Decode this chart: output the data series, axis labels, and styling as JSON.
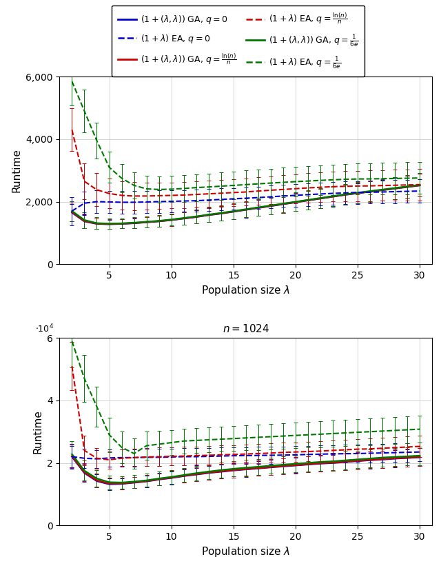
{
  "colors": {
    "blue": "#0000cc",
    "red": "#cc0000",
    "green": "#007700"
  },
  "n128": {
    "ylim": [
      0,
      6000
    ],
    "yticks": [
      0,
      2000,
      4000,
      6000
    ],
    "xlim": [
      1,
      31
    ],
    "xticks": [
      5,
      10,
      15,
      20,
      25,
      30
    ],
    "lambda_vals": [
      2,
      3,
      4,
      5,
      6,
      7,
      8,
      9,
      10,
      11,
      12,
      13,
      14,
      15,
      16,
      17,
      18,
      19,
      20,
      21,
      22,
      23,
      24,
      25,
      26,
      27,
      28,
      29,
      30
    ],
    "GA_q0_mean": [
      1650,
      1370,
      1290,
      1280,
      1290,
      1310,
      1340,
      1370,
      1410,
      1460,
      1510,
      1570,
      1620,
      1680,
      1740,
      1800,
      1860,
      1920,
      1980,
      2040,
      2100,
      2160,
      2220,
      2270,
      2320,
      2370,
      2420,
      2470,
      2520
    ],
    "GA_q0_err": [
      280,
      220,
      165,
      145,
      145,
      155,
      165,
      175,
      185,
      195,
      205,
      215,
      235,
      245,
      250,
      260,
      265,
      275,
      285,
      295,
      305,
      315,
      320,
      325,
      330,
      335,
      345,
      355,
      365
    ],
    "GA_qln_mean": [
      1670,
      1380,
      1295,
      1282,
      1295,
      1315,
      1345,
      1375,
      1415,
      1465,
      1515,
      1575,
      1625,
      1685,
      1745,
      1805,
      1865,
      1925,
      1985,
      2045,
      2105,
      2165,
      2225,
      2275,
      2325,
      2375,
      2425,
      2475,
      2525
    ],
    "GA_qln_err": [
      290,
      225,
      168,
      148,
      148,
      158,
      168,
      178,
      188,
      198,
      208,
      218,
      238,
      248,
      252,
      262,
      268,
      278,
      288,
      298,
      308,
      318,
      322,
      328,
      332,
      338,
      348,
      358,
      368
    ],
    "GA_q16e_mean": [
      1700,
      1410,
      1310,
      1295,
      1305,
      1325,
      1355,
      1385,
      1425,
      1475,
      1525,
      1585,
      1635,
      1695,
      1755,
      1815,
      1875,
      1935,
      1995,
      2055,
      2115,
      2175,
      2235,
      2285,
      2335,
      2385,
      2435,
      2485,
      2535
    ],
    "GA_q16e_err": [
      320,
      255,
      185,
      160,
      158,
      168,
      178,
      188,
      195,
      205,
      215,
      225,
      245,
      255,
      258,
      268,
      275,
      285,
      295,
      305,
      315,
      325,
      328,
      335,
      338,
      345,
      355,
      365,
      375
    ],
    "EA_q0_mean": [
      1700,
      1950,
      2000,
      1990,
      1980,
      1980,
      1990,
      2000,
      2010,
      2020,
      2030,
      2050,
      2070,
      2090,
      2110,
      2130,
      2155,
      2180,
      2200,
      2225,
      2245,
      2265,
      2280,
      2295,
      2300,
      2310,
      2320,
      2330,
      2340
    ],
    "EA_q0_err": [
      450,
      380,
      360,
      355,
      355,
      355,
      358,
      360,
      350,
      350,
      350,
      350,
      350,
      350,
      352,
      352,
      355,
      355,
      355,
      358,
      360,
      362,
      362,
      362,
      363,
      365,
      366,
      368,
      370
    ],
    "EA_qln_mean": [
      4300,
      2650,
      2380,
      2260,
      2200,
      2180,
      2180,
      2190,
      2200,
      2210,
      2230,
      2250,
      2270,
      2290,
      2310,
      2340,
      2365,
      2390,
      2415,
      2440,
      2460,
      2480,
      2490,
      2500,
      2505,
      2515,
      2525,
      2535,
      2545
    ],
    "EA_qln_err": [
      680,
      580,
      530,
      480,
      460,
      445,
      435,
      425,
      415,
      415,
      418,
      422,
      428,
      435,
      440,
      445,
      450,
      458,
      462,
      468,
      472,
      478,
      482,
      488,
      490,
      492,
      498,
      500,
      502
    ],
    "EA_q16e_mean": [
      5850,
      4900,
      3950,
      3100,
      2750,
      2520,
      2410,
      2390,
      2400,
      2420,
      2450,
      2470,
      2495,
      2520,
      2545,
      2570,
      2595,
      2618,
      2640,
      2660,
      2680,
      2700,
      2715,
      2725,
      2728,
      2735,
      2742,
      2750,
      2758
    ],
    "EA_q16e_err": [
      780,
      680,
      580,
      490,
      445,
      425,
      415,
      415,
      418,
      420,
      428,
      435,
      440,
      448,
      450,
      458,
      460,
      468,
      470,
      478,
      480,
      488,
      490,
      498,
      500,
      502,
      508,
      510,
      512
    ]
  },
  "n1024": {
    "ylim": [
      0,
      60000
    ],
    "yticks": [
      0,
      20000,
      40000,
      60000
    ],
    "ytick_labels": [
      "0",
      "2",
      "4",
      "6"
    ],
    "xlim": [
      1,
      31
    ],
    "xticks": [
      5,
      10,
      15,
      20,
      25,
      30
    ],
    "lambda_vals": [
      2,
      3,
      4,
      5,
      6,
      7,
      8,
      9,
      10,
      11,
      12,
      13,
      14,
      15,
      16,
      17,
      18,
      19,
      20,
      21,
      22,
      23,
      24,
      25,
      26,
      27,
      28,
      29,
      30
    ],
    "GA_q0_mean": [
      22000,
      16800,
      14200,
      13200,
      13300,
      13700,
      14100,
      14700,
      15200,
      15800,
      16300,
      16800,
      17200,
      17600,
      17950,
      18250,
      18600,
      18900,
      19200,
      19500,
      19800,
      20000,
      20300,
      20600,
      20900,
      21100,
      21400,
      21600,
      21800
    ],
    "GA_q0_err": [
      3800,
      2800,
      2100,
      1800,
      1750,
      1750,
      1850,
      1950,
      2050,
      2100,
      2150,
      2200,
      2250,
      2300,
      2350,
      2400,
      2450,
      2480,
      2520,
      2550,
      2580,
      2620,
      2650,
      2680,
      2720,
      2750,
      2780,
      2800,
      2850
    ],
    "GA_qln_mean": [
      22200,
      17000,
      14400,
      13400,
      13400,
      13800,
      14200,
      14800,
      15300,
      15900,
      16400,
      16900,
      17300,
      17700,
      18050,
      18350,
      18700,
      19000,
      19300,
      19600,
      19900,
      20100,
      20400,
      20700,
      21000,
      21200,
      21500,
      21700,
      21900
    ],
    "GA_qln_err": [
      3900,
      2900,
      2200,
      1900,
      1800,
      1800,
      1900,
      2000,
      2100,
      2150,
      2200,
      2250,
      2300,
      2350,
      2400,
      2450,
      2500,
      2520,
      2560,
      2580,
      2610,
      2640,
      2670,
      2700,
      2730,
      2760,
      2790,
      2820,
      2860
    ],
    "GA_q16e_mean": [
      22800,
      17500,
      15000,
      13800,
      13700,
      14000,
      14400,
      15000,
      15500,
      16100,
      16700,
      17200,
      17700,
      18100,
      18450,
      18750,
      19100,
      19400,
      19700,
      20000,
      20300,
      20500,
      20800,
      21100,
      21400,
      21700,
      21900,
      22100,
      22300
    ],
    "GA_q16e_err": [
      4200,
      3200,
      2600,
      2200,
      2050,
      2050,
      2100,
      2150,
      2200,
      2250,
      2300,
      2350,
      2400,
      2450,
      2500,
      2550,
      2580,
      2620,
      2650,
      2700,
      2730,
      2760,
      2800,
      2830,
      2870,
      2900,
      2920,
      2950,
      2980
    ],
    "EA_q0_mean": [
      22000,
      21500,
      21300,
      21600,
      21700,
      21700,
      21800,
      21800,
      21900,
      22000,
      22000,
      22100,
      22200,
      22300,
      22350,
      22400,
      22450,
      22500,
      22600,
      22700,
      22800,
      22900,
      22950,
      23000,
      23100,
      23200,
      23300,
      23400,
      23500
    ],
    "EA_q0_err": [
      3400,
      3100,
      2900,
      2750,
      2700,
      2680,
      2680,
      2680,
      2680,
      2680,
      2690,
      2695,
      2700,
      2710,
      2720,
      2730,
      2740,
      2760,
      2770,
      2790,
      2810,
      2830,
      2850,
      2870,
      2890,
      2910,
      2940,
      2960,
      2990
    ],
    "EA_qln_mean": [
      51000,
      24000,
      21500,
      21000,
      21500,
      21700,
      21900,
      22000,
      22100,
      22200,
      22350,
      22450,
      22600,
      22700,
      22850,
      23000,
      23150,
      23350,
      23500,
      23650,
      23800,
      24000,
      24200,
      24400,
      24500,
      24700,
      24900,
      25100,
      25300
    ],
    "EA_qln_err": [
      7800,
      4800,
      3300,
      2850,
      2800,
      2800,
      2850,
      2880,
      2900,
      2900,
      2920,
      2950,
      2970,
      3000,
      3020,
      3050,
      3080,
      3100,
      3130,
      3160,
      3200,
      3230,
      3270,
      3300,
      3330,
      3370,
      3400,
      3440,
      3480
    ],
    "EA_q16e_mean": [
      59000,
      47000,
      38000,
      29000,
      25000,
      23000,
      25500,
      26000,
      26500,
      27000,
      27200,
      27400,
      27600,
      27800,
      28000,
      28200,
      28400,
      28600,
      28800,
      29000,
      29200,
      29400,
      29600,
      29800,
      30000,
      30200,
      30400,
      30600,
      30800
    ],
    "EA_q16e_err": [
      8500,
      7500,
      6500,
      5500,
      5000,
      4800,
      4500,
      4200,
      4000,
      3900,
      3900,
      3900,
      3900,
      3950,
      4000,
      4020,
      4050,
      4070,
      4100,
      4120,
      4150,
      4170,
      4200,
      4220,
      4250,
      4280,
      4300,
      4320,
      4350
    ]
  }
}
